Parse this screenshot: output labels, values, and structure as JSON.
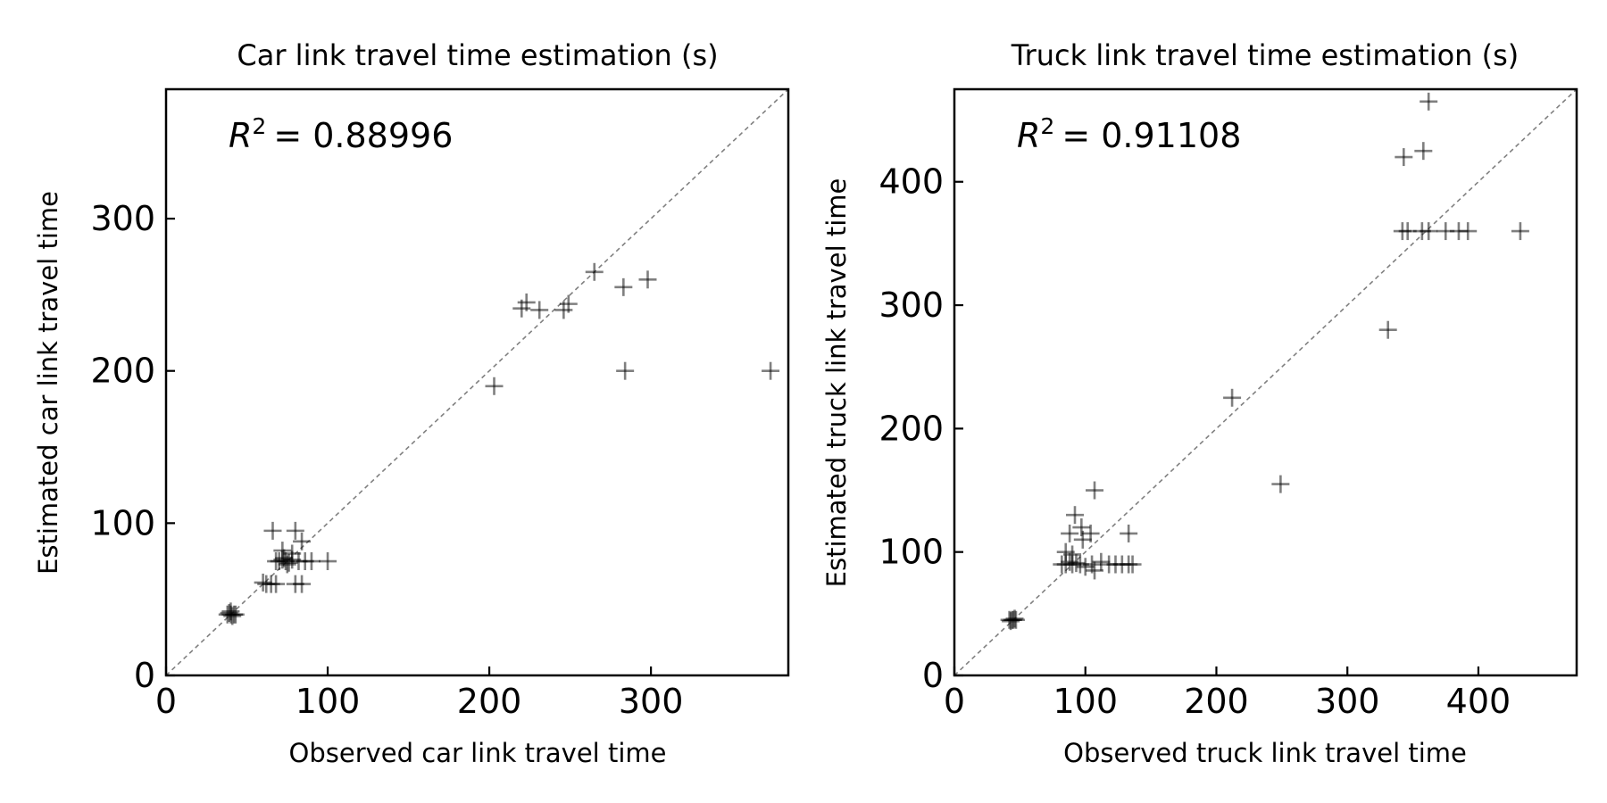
{
  "chart_data": [
    {
      "type": "scatter",
      "title": "Car link travel time estimation (s)",
      "xlabel": "Observed car link travel time",
      "ylabel": "Estimated car link travel time",
      "annotation": {
        "r2_value": "= 0.88996"
      },
      "xlim": [
        0,
        385
      ],
      "ylim": [
        0,
        385
      ],
      "xticks": [
        0,
        100,
        200,
        300
      ],
      "yticks": [
        0,
        100,
        200,
        300
      ],
      "diagonal": true,
      "grid": false,
      "marker": "+",
      "series": [
        {
          "x": [
            38,
            40,
            42,
            39,
            41,
            43,
            40,
            62,
            65,
            60,
            68,
            80,
            84,
            70,
            72,
            74,
            76,
            78,
            68,
            73,
            75,
            82,
            86,
            90,
            100,
            78,
            72,
            66,
            80,
            84,
            203,
            220,
            223,
            231,
            246,
            249,
            265,
            283,
            298,
            284,
            374
          ],
          "y": [
            40,
            40,
            40,
            41,
            39,
            40,
            42,
            60,
            60,
            61,
            60,
            60,
            60,
            75,
            76,
            75,
            74,
            76,
            75,
            77,
            73,
            75,
            75,
            75,
            75,
            80,
            82,
            95,
            95,
            88,
            190,
            241,
            245,
            240,
            240,
            244,
            265,
            255,
            260,
            200,
            200
          ]
        }
      ]
    },
    {
      "type": "scatter",
      "title": "Truck link travel time estimation (s)",
      "xlabel": "Observed truck link travel time",
      "ylabel": "Estimated truck link travel time",
      "annotation": {
        "r2_value": "= 0.91108"
      },
      "xlim": [
        0,
        475
      ],
      "ylim": [
        0,
        475
      ],
      "xticks": [
        0,
        100,
        200,
        300,
        400
      ],
      "yticks": [
        0,
        100,
        200,
        300,
        400
      ],
      "diagonal": true,
      "grid": false,
      "marker": "+",
      "series": [
        {
          "x": [
            42,
            44,
            46,
            45,
            43,
            47,
            82,
            85,
            88,
            90,
            93,
            96,
            100,
            105,
            118,
            123,
            128,
            133,
            136,
            85,
            90,
            98,
            104,
            107,
            112,
            88,
            92,
            97,
            107,
            133,
            212,
            249,
            331,
            342,
            346,
            357,
            362,
            375,
            385,
            392,
            343,
            358,
            362,
            432
          ],
          "y": [
            45,
            45,
            46,
            45,
            44,
            45,
            90,
            90,
            92,
            90,
            91,
            90,
            88,
            90,
            90,
            90,
            90,
            90,
            90,
            100,
            98,
            110,
            115,
            85,
            92,
            115,
            130,
            120,
            150,
            115,
            225,
            155,
            280,
            360,
            360,
            360,
            360,
            360,
            360,
            360,
            420,
            425,
            465,
            360
          ]
        }
      ]
    }
  ]
}
